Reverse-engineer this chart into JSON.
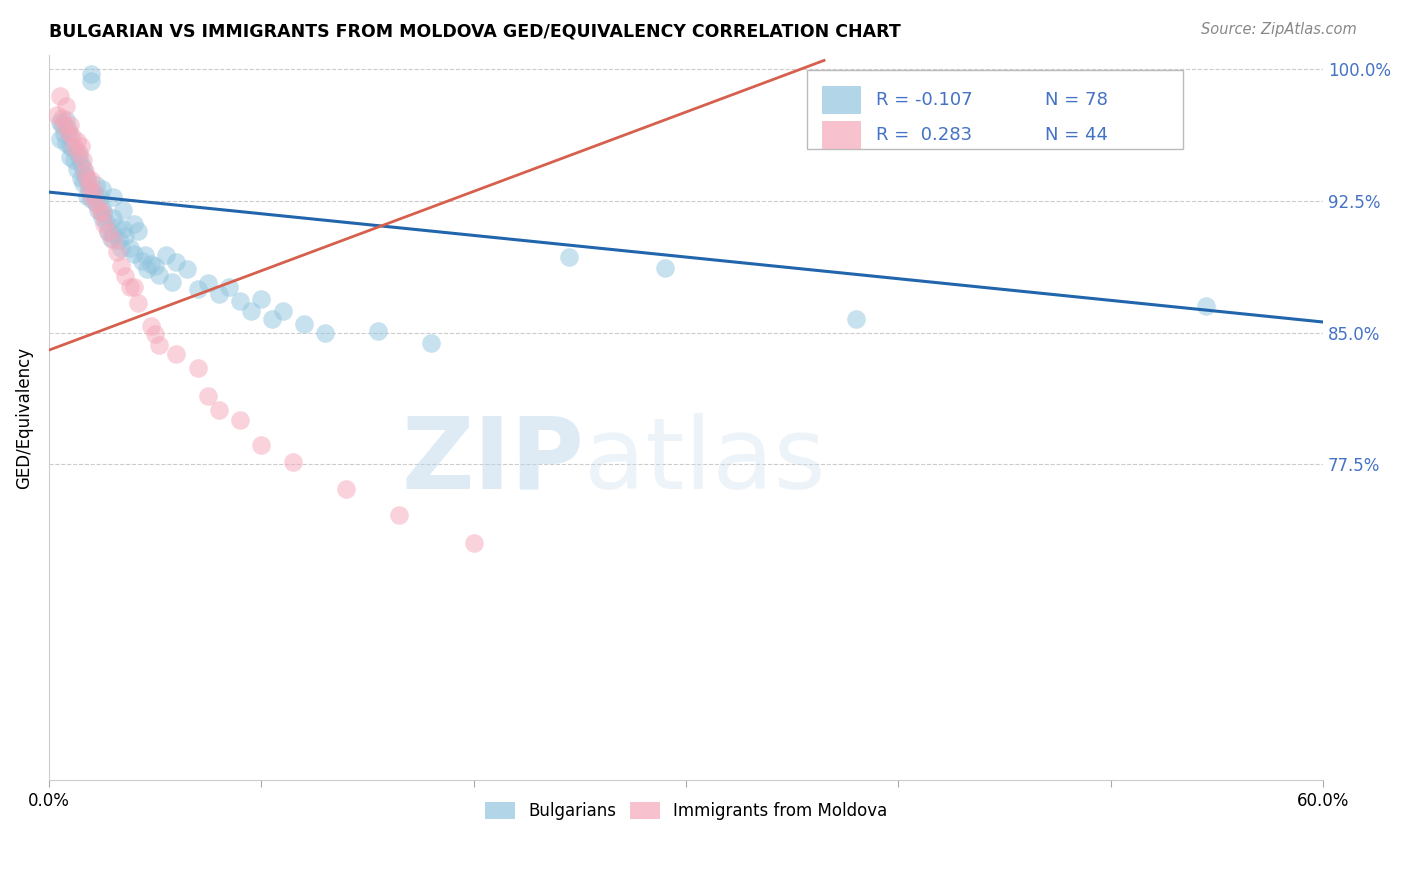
{
  "title": "BULGARIAN VS IMMIGRANTS FROM MOLDOVA GED/EQUIVALENCY CORRELATION CHART",
  "source": "Source: ZipAtlas.com",
  "ylabel": "GED/Equivalency",
  "xlim": [
    0.0,
    0.6
  ],
  "ylim": [
    0.595,
    1.008
  ],
  "ytick_positions": [
    0.775,
    0.85,
    0.925,
    1.0
  ],
  "yticklabels": [
    "77.5%",
    "85.0%",
    "92.5%",
    "100.0%"
  ],
  "legend_blue_r": "-0.107",
  "legend_blue_n": "78",
  "legend_pink_r": "0.283",
  "legend_pink_n": "44",
  "blue_color": "#92c5de",
  "pink_color": "#f4a7b9",
  "blue_line_color": "#2166ac",
  "pink_line_color": "#d6604d",
  "text_color": "#4472c4",
  "watermark_zip": "ZIP",
  "watermark_atlas": "atlas",
  "blue_trend_x0": 0.0,
  "blue_trend_x1": 0.6,
  "blue_trend_y0": 0.93,
  "blue_trend_y1": 0.856,
  "pink_trend_x0": 0.0,
  "pink_trend_x1": 0.365,
  "pink_trend_y0": 0.84,
  "pink_trend_y1": 1.005,
  "blue_x": [
    0.005,
    0.005,
    0.006,
    0.007,
    0.008,
    0.008,
    0.009,
    0.01,
    0.01,
    0.01,
    0.011,
    0.012,
    0.013,
    0.013,
    0.014,
    0.015,
    0.015,
    0.016,
    0.016,
    0.017,
    0.018,
    0.018,
    0.019,
    0.02,
    0.02,
    0.02,
    0.021,
    0.022,
    0.022,
    0.023,
    0.024,
    0.025,
    0.025,
    0.025,
    0.026,
    0.027,
    0.028,
    0.029,
    0.03,
    0.03,
    0.03,
    0.032,
    0.033,
    0.034,
    0.035,
    0.035,
    0.036,
    0.038,
    0.04,
    0.04,
    0.042,
    0.044,
    0.045,
    0.046,
    0.048,
    0.05,
    0.052,
    0.055,
    0.058,
    0.06,
    0.065,
    0.07,
    0.075,
    0.08,
    0.085,
    0.09,
    0.095,
    0.1,
    0.105,
    0.11,
    0.12,
    0.13,
    0.155,
    0.18,
    0.245,
    0.29,
    0.38,
    0.545
  ],
  "blue_y": [
    0.97,
    0.96,
    0.968,
    0.963,
    0.971,
    0.958,
    0.966,
    0.962,
    0.956,
    0.95,
    0.955,
    0.948,
    0.953,
    0.943,
    0.95,
    0.946,
    0.938,
    0.944,
    0.935,
    0.94,
    0.937,
    0.928,
    0.932,
    0.997,
    0.993,
    0.926,
    0.929,
    0.924,
    0.934,
    0.92,
    0.927,
    0.921,
    0.916,
    0.932,
    0.918,
    0.913,
    0.908,
    0.904,
    0.927,
    0.915,
    0.906,
    0.91,
    0.903,
    0.898,
    0.92,
    0.909,
    0.905,
    0.898,
    0.912,
    0.895,
    0.908,
    0.891,
    0.894,
    0.886,
    0.889,
    0.888,
    0.883,
    0.894,
    0.879,
    0.89,
    0.886,
    0.875,
    0.878,
    0.872,
    0.876,
    0.868,
    0.862,
    0.869,
    0.858,
    0.862,
    0.855,
    0.85,
    0.851,
    0.844,
    0.893,
    0.887,
    0.858,
    0.865
  ],
  "pink_x": [
    0.004,
    0.005,
    0.006,
    0.007,
    0.008,
    0.009,
    0.01,
    0.011,
    0.012,
    0.013,
    0.014,
    0.015,
    0.016,
    0.017,
    0.018,
    0.019,
    0.02,
    0.02,
    0.021,
    0.022,
    0.024,
    0.025,
    0.026,
    0.028,
    0.03,
    0.032,
    0.034,
    0.036,
    0.038,
    0.04,
    0.042,
    0.048,
    0.05,
    0.052,
    0.06,
    0.07,
    0.075,
    0.08,
    0.09,
    0.1,
    0.115,
    0.14,
    0.165,
    0.2
  ],
  "pink_y": [
    0.974,
    0.985,
    0.972,
    0.968,
    0.979,
    0.964,
    0.968,
    0.962,
    0.956,
    0.959,
    0.952,
    0.956,
    0.948,
    0.942,
    0.938,
    0.933,
    0.937,
    0.928,
    0.93,
    0.924,
    0.92,
    0.918,
    0.912,
    0.907,
    0.903,
    0.896,
    0.888,
    0.882,
    0.876,
    0.876,
    0.867,
    0.854,
    0.849,
    0.843,
    0.838,
    0.83,
    0.814,
    0.806,
    0.8,
    0.786,
    0.776,
    0.761,
    0.746,
    0.73
  ]
}
